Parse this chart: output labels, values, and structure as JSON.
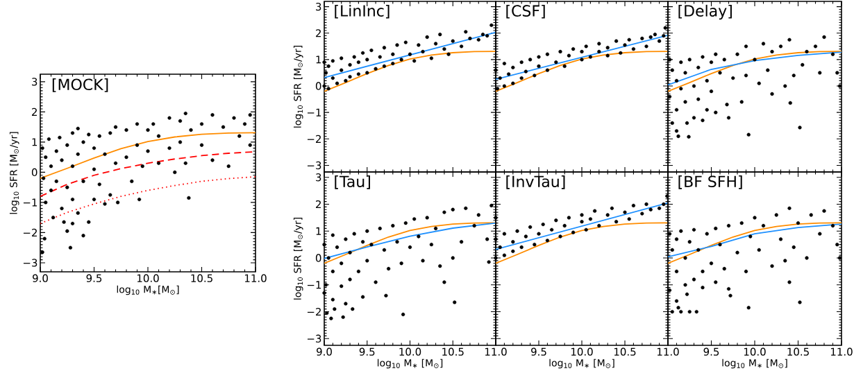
{
  "chart_data": [
    {
      "type": "scatter",
      "title": "[MOCK]",
      "xlabel": "log$_{10}$ M$_{∗}$[M$_{⊙}$]",
      "ylabel": "log$_{10}$ SFR [M$_{⊙}$/yr]",
      "xlim": [
        9,
        11
      ],
      "ylim": [
        -3.3,
        3.25
      ],
      "xticks": [
        {
          "value": 9,
          "label": "9.0"
        },
        9.5,
        {
          "value": 10,
          "label": "10.0"
        },
        10.5,
        {
          "value": 11,
          "label": "11.0"
        }
      ],
      "yticks": [
        {
          "value": -3,
          "label": "−3"
        },
        {
          "value": -2,
          "label": "−2"
        },
        {
          "value": -1,
          "label": "−1"
        },
        0,
        1,
        2,
        3
      ],
      "series": [
        {
          "color": "#000000",
          "marker": "circle",
          "x": [
            9.02,
            9.03,
            9.05,
            9.05,
            9.04,
            9.02,
            9.08,
            9.1,
            9.1,
            9.12,
            9.15,
            9.15,
            9.18,
            9.2,
            9.2,
            9.22,
            9.25,
            9.25,
            9.25,
            9.28,
            9.3,
            9.3,
            9.3,
            9.3,
            9.35,
            9.35,
            9.35,
            9.4,
            9.4,
            9.4,
            9.45,
            9.45,
            9.5,
            9.5,
            9.5,
            9.55,
            9.55,
            9.6,
            9.6,
            9.65,
            9.65,
            9.7,
            9.7,
            9.72,
            9.8,
            9.8,
            9.85,
            9.9,
            9.9,
            9.92,
            9.95,
            10.0,
            10.0,
            10.05,
            10.1,
            10.1,
            10.2,
            10.2,
            10.25,
            10.3,
            10.3,
            10.35,
            10.35,
            10.38,
            10.4,
            10.5,
            10.5,
            10.6,
            10.6,
            10.7,
            10.75,
            10.8,
            10.85,
            10.9,
            10.95,
            10.95
          ],
          "values": [
            0.8,
            -0.2,
            0.5,
            -1.0,
            -2.2,
            -2.65,
            1.1,
            0.2,
            -0.6,
            -1.5,
            0.7,
            -0.3,
            1.15,
            0.4,
            -1.2,
            -1.65,
            0.9,
            -0.5,
            -1.95,
            -2.5,
            1.3,
            0.2,
            -0.9,
            -1.7,
            1.45,
            0.6,
            -1.35,
            1.0,
            -0.3,
            -2.1,
            1.25,
            -1.65,
            0.8,
            0.1,
            -0.9,
            1.2,
            -0.4,
            0.6,
            -1.05,
            1.3,
            -0.75,
            1.5,
            0.3,
            -1.0,
            1.4,
            0.5,
            -0.3,
            1.6,
            0.9,
            -0.9,
            0.2,
            1.4,
            0.7,
            1.6,
            1.2,
            0.3,
            1.8,
            0.8,
            0.0,
            1.7,
            1.0,
            1.95,
            0.3,
            -0.85,
            1.4,
            1.6,
            0.9,
            1.9,
            0.4,
            1.5,
            0.2,
            1.8,
            1.2,
            1.6,
            1.9,
            0.9
          ]
        },
        {
          "type": "line",
          "color": "#ff8c00",
          "x": [
            9.0,
            9.25,
            9.5,
            9.75,
            10.0,
            10.25,
            10.5,
            10.75,
            11.0
          ],
          "values": [
            -0.2,
            0.13,
            0.47,
            0.78,
            1.02,
            1.17,
            1.26,
            1.3,
            1.31
          ]
        },
        {
          "type": "line",
          "color": "#ff0000",
          "line_style": "dashed",
          "x": [
            9.0,
            9.25,
            9.5,
            9.75,
            10.0,
            10.25,
            10.5,
            10.75,
            11.0
          ],
          "values": [
            -0.8,
            -0.4,
            -0.1,
            0.12,
            0.3,
            0.44,
            0.55,
            0.63,
            0.68
          ]
        },
        {
          "type": "line",
          "color": "#ff0000",
          "line_style": "dotted",
          "x": [
            9.0,
            9.25,
            9.5,
            9.75,
            10.0,
            10.25,
            10.5,
            10.75,
            11.0
          ],
          "values": [
            -1.7,
            -1.33,
            -1.05,
            -0.8,
            -0.6,
            -0.44,
            -0.3,
            -0.21,
            -0.15
          ]
        }
      ]
    },
    {
      "type": "scatter",
      "title": "[LinInc]",
      "ylabel": "log$_{10}$ SFR [M$_{⊙}$/yr]",
      "tick_labels": "y",
      "xlim": [
        9,
        11
      ],
      "ylim": [
        -3.25,
        3.2
      ],
      "xticks": [
        9,
        9.5,
        10,
        10.5,
        11
      ],
      "yticks": [
        {
          "value": -3,
          "label": "−3"
        },
        {
          "value": -2,
          "label": "−2"
        },
        {
          "value": -1,
          "label": "−1"
        },
        0,
        1,
        2,
        3
      ],
      "series": [
        {
          "color": "#000000",
          "marker": "circle",
          "x": [
            9.0,
            9.0,
            9.02,
            9.05,
            9.05,
            9.1,
            9.1,
            9.15,
            9.2,
            9.2,
            9.25,
            9.3,
            9.3,
            9.35,
            9.4,
            9.4,
            9.45,
            9.5,
            9.5,
            9.55,
            9.6,
            9.65,
            9.7,
            9.7,
            9.8,
            9.8,
            9.85,
            9.9,
            9.95,
            10.0,
            10.05,
            10.1,
            10.15,
            10.2,
            10.25,
            10.3,
            10.35,
            10.4,
            10.45,
            10.5,
            10.6,
            10.65,
            10.7,
            10.8,
            10.85,
            10.9,
            10.95
          ],
          "values": [
            0.9,
            0.0,
            0.5,
            -0.1,
            0.75,
            0.3,
            0.95,
            0.1,
            0.6,
            1.05,
            0.2,
            0.8,
            0.35,
            1.1,
            0.45,
            0.9,
            1.25,
            0.5,
            1.0,
            1.35,
            0.65,
            1.1,
            1.45,
            0.75,
            1.2,
            0.85,
            1.55,
            1.0,
            1.65,
            1.2,
            0.95,
            1.55,
            1.3,
            1.85,
            1.05,
            1.6,
            1.95,
            1.4,
            1.2,
            1.7,
            1.5,
            2.05,
            1.8,
            1.75,
            1.95,
            1.9,
            2.3
          ]
        },
        {
          "type": "line",
          "color": "#ff8c00",
          "x": [
            9.0,
            9.25,
            9.5,
            9.75,
            10.0,
            10.25,
            10.5,
            10.75,
            11.0
          ],
          "values": [
            -0.2,
            0.13,
            0.47,
            0.78,
            1.02,
            1.17,
            1.26,
            1.3,
            1.31
          ]
        },
        {
          "type": "line",
          "color": "#1e90ff",
          "x": [
            9.0,
            11.0
          ],
          "values": [
            0.32,
            2.03
          ]
        }
      ]
    },
    {
      "type": "scatter",
      "title": "[CSF]",
      "tick_labels": false,
      "xlim": [
        9,
        11
      ],
      "ylim": [
        -3.25,
        3.2
      ],
      "xticks": [
        9,
        9.5,
        10,
        10.5,
        11
      ],
      "yticks": [
        -3,
        -2,
        -1,
        0,
        1,
        2,
        3
      ],
      "series": [
        {
          "color": "#000000",
          "marker": "circle",
          "x": [
            9.0,
            9.02,
            9.05,
            9.1,
            9.1,
            9.15,
            9.2,
            9.2,
            9.3,
            9.3,
            9.35,
            9.4,
            9.45,
            9.5,
            9.5,
            9.6,
            9.6,
            9.7,
            9.75,
            9.8,
            9.85,
            9.9,
            10.0,
            10.0,
            10.05,
            10.1,
            10.2,
            10.2,
            10.3,
            10.3,
            10.4,
            10.45,
            10.5,
            10.55,
            10.6,
            10.7,
            10.75,
            10.8,
            10.85,
            10.9,
            10.95,
            10.97
          ],
          "values": [
            0.6,
            -0.1,
            0.3,
            0.85,
            0.0,
            0.45,
            0.7,
            0.1,
            0.9,
            0.3,
            0.55,
            1.0,
            0.4,
            0.75,
            1.1,
            0.6,
            1.2,
            0.9,
            1.3,
            0.75,
            1.15,
            1.4,
            1.0,
            1.3,
            1.5,
            1.1,
            1.6,
            1.3,
            1.15,
            1.45,
            1.7,
            1.25,
            1.55,
            1.75,
            1.4,
            1.8,
            1.5,
            1.85,
            1.95,
            1.7,
            1.9,
            2.2
          ]
        },
        {
          "type": "line",
          "color": "#ff8c00",
          "x": [
            9.0,
            9.25,
            9.5,
            9.75,
            10.0,
            10.25,
            10.5,
            10.75,
            11.0
          ],
          "values": [
            -0.2,
            0.13,
            0.47,
            0.78,
            1.02,
            1.17,
            1.26,
            1.3,
            1.31
          ]
        },
        {
          "type": "line",
          "color": "#1e90ff",
          "x": [
            9.0,
            11.0
          ],
          "values": [
            0.25,
            1.92
          ]
        }
      ]
    },
    {
      "type": "scatter",
      "title": "[Delay]",
      "tick_labels": false,
      "xlim": [
        9,
        11
      ],
      "ylim": [
        -3.25,
        3.2
      ],
      "xticks": [
        9,
        9.5,
        10,
        10.5,
        11
      ],
      "yticks": [
        -3,
        -2,
        -1,
        0,
        1,
        2,
        3
      ],
      "series": [
        {
          "color": "#000000",
          "marker": "circle",
          "x": [
            9.02,
            9.02,
            9.05,
            9.05,
            9.1,
            9.1,
            9.1,
            9.12,
            9.15,
            9.15,
            9.2,
            9.2,
            9.22,
            9.24,
            9.25,
            9.3,
            9.3,
            9.35,
            9.35,
            9.4,
            9.4,
            9.45,
            9.45,
            9.5,
            9.5,
            9.55,
            9.55,
            9.6,
            9.65,
            9.68,
            9.7,
            9.75,
            9.8,
            9.85,
            9.9,
            9.9,
            9.93,
            10.0,
            10.05,
            10.1,
            10.15,
            10.2,
            10.2,
            10.3,
            10.35,
            10.4,
            10.41,
            10.45,
            10.52,
            10.55,
            10.6,
            10.7,
            10.75,
            10.8,
            10.9,
            10.95,
            10.98
          ],
          "values": [
            1.0,
            -0.4,
            0.6,
            -1.4,
            0.2,
            -0.9,
            -1.7,
            -1.9,
            0.9,
            -0.1,
            0.5,
            -0.6,
            -1.4,
            -1.92,
            1.0,
            0.0,
            -1.2,
            0.7,
            -0.5,
            1.1,
            -1.3,
            0.2,
            -0.9,
            0.9,
            -0.2,
            1.2,
            -1.0,
            0.5,
            1.0,
            -0.7,
            -1.2,
            0.3,
            1.2,
            -0.6,
            1.5,
            0.4,
            -1.84,
            1.0,
            0.1,
            1.6,
            0.6,
            1.3,
            -0.3,
            1.5,
            0.0,
            1.75,
            -0.64,
            0.4,
            -1.57,
            0.8,
            1.3,
            1.5,
            0.5,
            1.85,
            1.2,
            0.5,
            0.0
          ]
        },
        {
          "type": "line",
          "color": "#ff8c00",
          "x": [
            9.0,
            9.25,
            9.5,
            9.75,
            10.0,
            10.25,
            10.5,
            10.75,
            11.0
          ],
          "values": [
            -0.2,
            0.13,
            0.47,
            0.78,
            1.02,
            1.17,
            1.26,
            1.3,
            1.31
          ]
        },
        {
          "type": "line",
          "color": "#1e90ff",
          "x": [
            9.0,
            9.5,
            10.0,
            10.5,
            11.0
          ],
          "values": [
            0.04,
            0.63,
            0.96,
            1.16,
            1.28
          ]
        }
      ]
    },
    {
      "type": "scatter",
      "title": "[Tau]",
      "xlabel": "log$_{10}$ M$_{∗}$ [M$_{⊙}$]",
      "ylabel": "log$_{10}$ SFR [M$_{⊙}$/yr]",
      "xlim": [
        9,
        11
      ],
      "ylim": [
        -3.25,
        3.2
      ],
      "xticks": [
        {
          "value": 9,
          "label": "9.0"
        },
        9.5,
        {
          "value": 10,
          "label": "10.0"
        },
        10.5,
        {
          "value": 11,
          "label": "11.0"
        }
      ],
      "yticks": [
        {
          "value": -3,
          "label": "−3"
        },
        {
          "value": -2,
          "label": "−2"
        },
        {
          "value": -1,
          "label": "−1"
        },
        0,
        1,
        2,
        3
      ],
      "series": [
        {
          "color": "#000000",
          "marker": "circle",
          "x": [
            9.0,
            9.0,
            9.02,
            9.03,
            9.05,
            9.08,
            9.1,
            9.1,
            9.1,
            9.12,
            9.15,
            9.2,
            9.2,
            9.22,
            9.25,
            9.25,
            9.3,
            9.3,
            9.33,
            9.35,
            9.4,
            9.45,
            9.45,
            9.5,
            9.5,
            9.55,
            9.6,
            9.65,
            9.7,
            9.72,
            9.75,
            9.8,
            9.85,
            9.9,
            9.92,
            9.95,
            10.0,
            10.05,
            10.1,
            10.15,
            10.2,
            10.25,
            10.3,
            10.35,
            10.4,
            10.4,
            10.5,
            10.5,
            10.52,
            10.6,
            10.65,
            10.75,
            10.8,
            10.9,
            10.92,
            10.95,
            11.0
          ],
          "values": [
            0.5,
            -1.3,
            -1.0,
            -2.05,
            0.0,
            -2.25,
            0.85,
            -1.55,
            -0.5,
            -1.9,
            0.4,
            -0.2,
            -1.05,
            -2.2,
            0.7,
            -1.7,
            0.2,
            -0.8,
            -1.9,
            0.9,
            -0.5,
            0.6,
            -1.45,
            1.0,
            -0.1,
            0.5,
            -0.9,
            1.1,
            0.3,
            -1.4,
            -0.4,
            1.2,
            0.6,
            -0.2,
            -2.1,
            1.3,
            0.4,
            1.45,
            0.8,
            -0.1,
            1.5,
            0.5,
            1.1,
            -0.3,
            1.7,
            -0.9,
            1.8,
            0.0,
            -1.65,
            0.6,
            1.85,
            1.2,
            1.6,
            0.7,
            -0.15,
            1.95,
            1.5
          ]
        },
        {
          "type": "line",
          "color": "#ff8c00",
          "x": [
            9.0,
            9.25,
            9.5,
            9.75,
            10.0,
            10.25,
            10.5,
            10.75,
            11.0
          ],
          "values": [
            -0.2,
            0.13,
            0.47,
            0.78,
            1.02,
            1.17,
            1.26,
            1.3,
            1.31
          ]
        },
        {
          "type": "line",
          "color": "#1e90ff",
          "x": [
            9.0,
            9.5,
            10.0,
            10.5,
            11.0
          ],
          "values": [
            -0.02,
            0.41,
            0.81,
            1.11,
            1.3
          ]
        }
      ]
    },
    {
      "type": "scatter",
      "title": "[InvTau]",
      "xlabel": "log$_{10}$ M$_{∗}$ [M$_{⊙}$]",
      "tick_labels": "x",
      "xlim": [
        9,
        11
      ],
      "ylim": [
        -3.25,
        3.2
      ],
      "xticks": [
        {
          "value": 9,
          "label": null
        },
        9.5,
        {
          "value": 10,
          "label": "10.0"
        },
        10.5,
        {
          "value": 11,
          "label": "11.0"
        }
      ],
      "yticks": [
        -3,
        -2,
        -1,
        0,
        1,
        2,
        3
      ],
      "series": [
        {
          "color": "#000000",
          "marker": "circle",
          "x": [
            9.0,
            9.0,
            9.05,
            9.1,
            9.1,
            9.2,
            9.2,
            9.25,
            9.3,
            9.35,
            9.4,
            9.45,
            9.5,
            9.55,
            9.6,
            9.65,
            9.7,
            9.75,
            9.8,
            9.85,
            9.9,
            10.0,
            10.0,
            10.05,
            10.1,
            10.15,
            10.2,
            10.3,
            10.35,
            10.4,
            10.5,
            10.55,
            10.6,
            10.7,
            10.75,
            10.8,
            10.9,
            10.95,
            10.99
          ],
          "values": [
            0.7,
            0.0,
            0.4,
            0.9,
            0.1,
            0.6,
            0.25,
            1.0,
            0.4,
            0.8,
            1.15,
            0.5,
            0.9,
            1.25,
            0.65,
            1.05,
            1.4,
            0.8,
            1.2,
            1.5,
            0.95,
            1.35,
            1.6,
            1.05,
            1.45,
            1.75,
            1.2,
            1.6,
            1.85,
            1.35,
            1.7,
            1.45,
            1.95,
            1.65,
            2.0,
            1.8,
            1.85,
            2.0,
            2.3
          ]
        },
        {
          "type": "line",
          "color": "#ff8c00",
          "x": [
            9.0,
            9.25,
            9.5,
            9.75,
            10.0,
            10.25,
            10.5,
            10.75,
            11.0
          ],
          "values": [
            -0.2,
            0.13,
            0.47,
            0.78,
            1.02,
            1.17,
            1.26,
            1.3,
            1.31
          ]
        },
        {
          "type": "line",
          "color": "#1e90ff",
          "x": [
            9.0,
            11.0
          ],
          "values": [
            0.32,
            2.05
          ]
        }
      ]
    },
    {
      "type": "scatter",
      "title": "[BF SFH]",
      "xlabel": "log$_{10}$ M$_{∗}$ [M$_{⊙}$]",
      "tick_labels": "x",
      "xlim": [
        9,
        11
      ],
      "ylim": [
        -3.25,
        3.2
      ],
      "xticks": [
        {
          "value": 9,
          "label": null
        },
        9.5,
        {
          "value": 10,
          "label": "10.0"
        },
        10.5,
        {
          "value": 11,
          "label": "11.0"
        }
      ],
      "yticks": [
        -3,
        -2,
        -1,
        0,
        1,
        2,
        3
      ],
      "series": [
        {
          "color": "#000000",
          "marker": "circle",
          "x": [
            9.02,
            9.02,
            9.05,
            9.05,
            9.1,
            9.1,
            9.1,
            9.12,
            9.15,
            9.15,
            9.2,
            9.2,
            9.22,
            9.25,
            9.25,
            9.3,
            9.3,
            9.33,
            9.35,
            9.4,
            9.4,
            9.45,
            9.5,
            9.55,
            9.55,
            9.6,
            9.65,
            9.7,
            9.7,
            9.72,
            9.8,
            9.85,
            9.9,
            9.93,
            9.95,
            10.0,
            10.05,
            10.1,
            10.2,
            10.25,
            10.3,
            10.35,
            10.4,
            10.4,
            10.45,
            10.5,
            10.52,
            10.6,
            10.65,
            10.75,
            10.8,
            10.9,
            10.95,
            10.98
          ],
          "values": [
            0.9,
            -1.2,
            -2.0,
            0.3,
            0.7,
            -0.5,
            -1.6,
            -1.85,
            1.0,
            -2.0,
            0.0,
            -1.0,
            -1.35,
            0.6,
            -2.0,
            1.05,
            -0.8,
            -2.0,
            0.3,
            -0.5,
            -1.1,
            0.9,
            -0.2,
            1.1,
            -0.9,
            0.5,
            -0.4,
            1.2,
            -1.15,
            -1.4,
            0.2,
            1.3,
            -0.5,
            -1.85,
            0.8,
            1.5,
            0.3,
            1.2,
            -0.3,
            1.6,
            0.7,
            -0.1,
            1.85,
            -0.9,
            0.4,
            1.3,
            -1.65,
            0.0,
            1.6,
            0.9,
            1.75,
            1.2,
            0.5,
            0.0
          ]
        },
        {
          "type": "line",
          "color": "#ff8c00",
          "x": [
            9.0,
            9.25,
            9.5,
            9.75,
            10.0,
            10.25,
            10.5,
            10.75,
            11.0
          ],
          "values": [
            -0.2,
            0.13,
            0.47,
            0.78,
            1.02,
            1.17,
            1.26,
            1.3,
            1.31
          ]
        },
        {
          "type": "line",
          "color": "#1e90ff",
          "x": [
            9.0,
            9.5,
            10.0,
            10.5,
            11.0
          ],
          "values": [
            0.04,
            0.43,
            0.9,
            1.13,
            1.26
          ]
        }
      ]
    }
  ]
}
